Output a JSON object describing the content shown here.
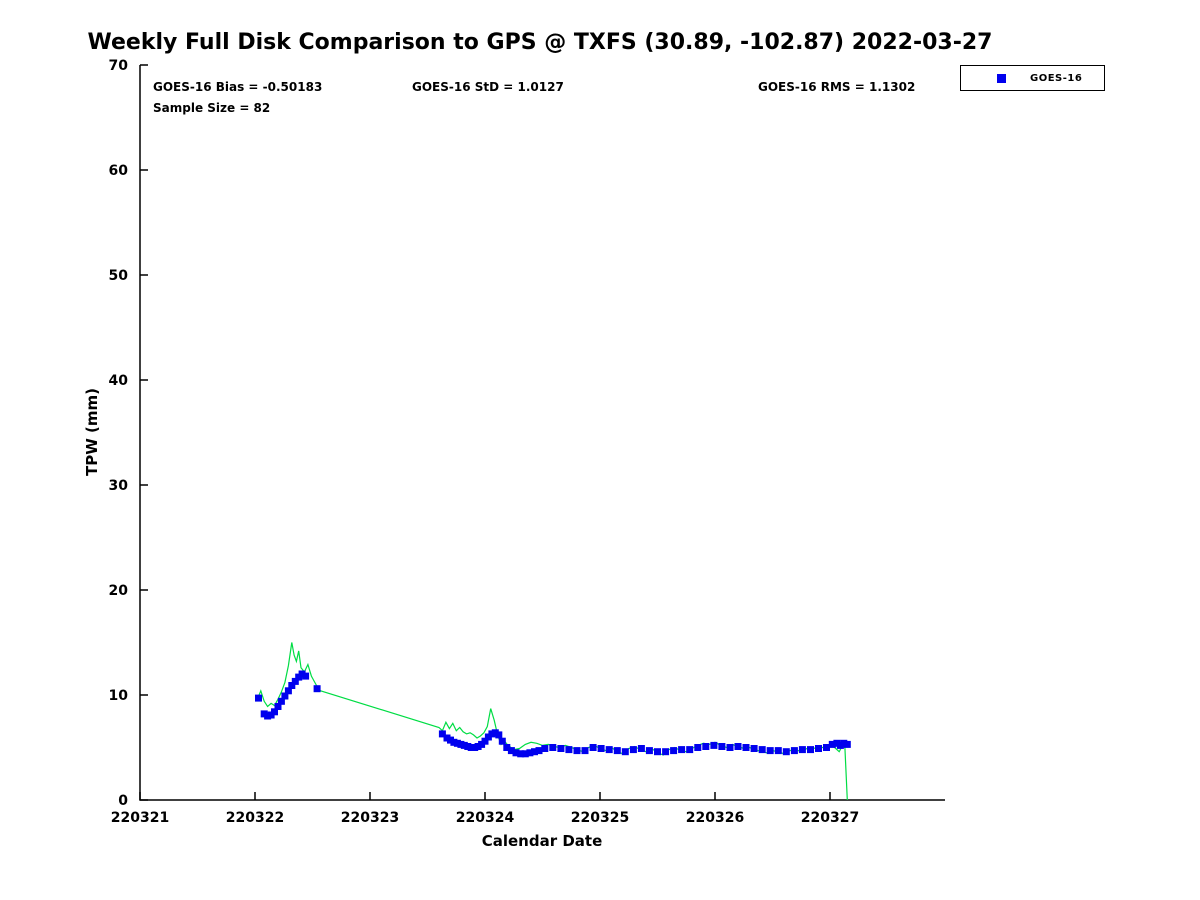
{
  "annotations": {
    "bias": "GOES-16 Bias = -0.50183",
    "std": "GOES-16 StD = 1.0127",
    "rms": "GOES-16 RMS = 1.1302",
    "sample_size": "Sample Size = 82"
  },
  "stats": {
    "bias": -0.50183,
    "std": 1.0127,
    "rms": 1.1302,
    "sample_size": 82
  },
  "legend": {
    "entries": [
      {
        "label": "GOES-16",
        "marker": "square",
        "marker_color": "#0000EE"
      }
    ]
  },
  "chart_data": {
    "type": "line",
    "title": "Weekly Full Disk Comparison to GPS @ TXFS (30.89, -102.87) 2022-03-27",
    "xlabel": "Calendar Date",
    "ylabel": "TPW (mm)",
    "xlim": [
      0,
      7
    ],
    "ylim": [
      0,
      70
    ],
    "grid": false,
    "legend_position": "top-right-outside",
    "x_unit_note": "x values are days after 220321",
    "x_ticks": [
      {
        "v": 0,
        "label": "220321"
      },
      {
        "v": 1,
        "label": "220322"
      },
      {
        "v": 2,
        "label": "220323"
      },
      {
        "v": 3,
        "label": "220324"
      },
      {
        "v": 4,
        "label": "220325"
      },
      {
        "v": 5,
        "label": "220326"
      },
      {
        "v": 6,
        "label": "220327"
      }
    ],
    "y_ticks": [
      {
        "v": 0,
        "label": "0"
      },
      {
        "v": 10,
        "label": "10"
      },
      {
        "v": 20,
        "label": "20"
      },
      {
        "v": 30,
        "label": "30"
      },
      {
        "v": 40,
        "label": "40"
      },
      {
        "v": 50,
        "label": "50"
      },
      {
        "v": 60,
        "label": "60"
      },
      {
        "v": 70,
        "label": "70"
      }
    ],
    "series": [
      {
        "name": "GPS",
        "style": "line",
        "color": "#00DD44",
        "x": [
          1.02,
          1.05,
          1.08,
          1.11,
          1.14,
          1.17,
          1.2,
          1.23,
          1.26,
          1.29,
          1.32,
          1.34,
          1.36,
          1.38,
          1.4,
          1.43,
          1.46,
          1.49,
          1.52,
          1.55,
          1.57,
          2.6,
          2.63,
          2.66,
          2.69,
          2.72,
          2.75,
          2.78,
          2.81,
          2.84,
          2.87,
          2.9,
          2.93,
          2.96,
          2.99,
          3.02,
          3.05,
          3.08,
          3.11,
          3.14,
          3.17,
          3.2,
          3.25,
          3.3,
          3.35,
          3.4,
          3.45,
          3.5,
          3.55,
          3.6,
          3.65,
          3.7,
          3.75,
          3.8,
          3.85,
          3.9,
          3.95,
          4.0,
          4.05,
          4.1,
          4.15,
          4.2,
          4.25,
          4.3,
          4.35,
          4.4,
          4.45,
          4.5,
          4.55,
          4.6,
          4.65,
          4.7,
          4.75,
          4.8,
          4.85,
          4.9,
          4.95,
          5.0,
          5.05,
          5.1,
          5.15,
          5.2,
          5.25,
          5.3,
          5.35,
          5.4,
          5.45,
          5.5,
          5.55,
          5.6,
          5.65,
          5.7,
          5.75,
          5.8,
          5.85,
          5.9,
          5.95,
          6.0,
          6.04,
          6.08,
          6.11,
          6.13,
          6.15
        ],
        "y": [
          9.6,
          10.4,
          9.4,
          8.9,
          9.2,
          9.0,
          9.6,
          10.3,
          11.2,
          12.8,
          15.0,
          13.8,
          13.2,
          14.2,
          12.6,
          12.2,
          12.9,
          11.8,
          11.2,
          10.6,
          10.4,
          6.9,
          6.6,
          7.4,
          6.8,
          7.3,
          6.6,
          6.9,
          6.5,
          6.3,
          6.4,
          6.2,
          5.9,
          6.1,
          6.4,
          7.0,
          8.7,
          7.6,
          6.2,
          5.3,
          5.6,
          5.2,
          4.8,
          4.9,
          5.3,
          5.5,
          5.4,
          5.2,
          5.3,
          5.1,
          5.0,
          5.2,
          5.0,
          4.8,
          4.6,
          5.0,
          5.2,
          4.9,
          4.7,
          5.0,
          4.6,
          4.4,
          4.9,
          5.1,
          4.8,
          4.6,
          4.9,
          4.5,
          4.3,
          4.8,
          5.0,
          4.7,
          4.6,
          4.9,
          5.2,
          5.4,
          5.3,
          5.5,
          5.2,
          5.0,
          5.3,
          5.1,
          4.9,
          5.0,
          4.8,
          4.6,
          4.5,
          4.7,
          4.6,
          4.4,
          4.7,
          4.8,
          4.6,
          4.9,
          5.0,
          4.8,
          5.1,
          5.3,
          5.0,
          4.6,
          5.2,
          5.0,
          0.0
        ]
      },
      {
        "name": "GOES-16",
        "style": "scatter",
        "marker": "square",
        "color": "#0000EE",
        "x": [
          1.03,
          1.08,
          1.11,
          1.14,
          1.17,
          1.2,
          1.23,
          1.26,
          1.29,
          1.32,
          1.35,
          1.38,
          1.41,
          1.44,
          1.54,
          2.63,
          2.67,
          2.7,
          2.73,
          2.76,
          2.79,
          2.82,
          2.85,
          2.88,
          2.91,
          2.94,
          2.97,
          3.0,
          3.03,
          3.06,
          3.09,
          3.12,
          3.15,
          3.19,
          3.23,
          3.27,
          3.31,
          3.35,
          3.39,
          3.43,
          3.47,
          3.52,
          3.59,
          3.66,
          3.73,
          3.8,
          3.87,
          3.94,
          4.01,
          4.08,
          4.15,
          4.22,
          4.29,
          4.36,
          4.43,
          4.5,
          4.57,
          4.64,
          4.71,
          4.78,
          4.85,
          4.92,
          4.99,
          5.06,
          5.13,
          5.2,
          5.27,
          5.34,
          5.41,
          5.48,
          5.55,
          5.62,
          5.69,
          5.76,
          5.83,
          5.9,
          5.97,
          6.02,
          6.06,
          6.09,
          6.12,
          6.15
        ],
        "y": [
          9.7,
          8.2,
          8.0,
          8.1,
          8.4,
          8.9,
          9.4,
          9.9,
          10.4,
          10.9,
          11.3,
          11.7,
          12.0,
          11.8,
          10.6,
          6.3,
          5.9,
          5.7,
          5.5,
          5.4,
          5.3,
          5.2,
          5.1,
          5.0,
          5.0,
          5.1,
          5.3,
          5.6,
          6.0,
          6.3,
          6.4,
          6.2,
          5.6,
          5.0,
          4.7,
          4.5,
          4.4,
          4.4,
          4.5,
          4.6,
          4.7,
          4.9,
          5.0,
          4.9,
          4.8,
          4.7,
          4.7,
          5.0,
          4.9,
          4.8,
          4.7,
          4.6,
          4.8,
          4.9,
          4.7,
          4.6,
          4.6,
          4.7,
          4.8,
          4.8,
          5.0,
          5.1,
          5.2,
          5.1,
          5.0,
          5.1,
          5.0,
          4.9,
          4.8,
          4.7,
          4.7,
          4.6,
          4.7,
          4.8,
          4.8,
          4.9,
          5.0,
          5.3,
          5.4,
          5.2,
          5.4,
          5.3
        ]
      }
    ]
  }
}
